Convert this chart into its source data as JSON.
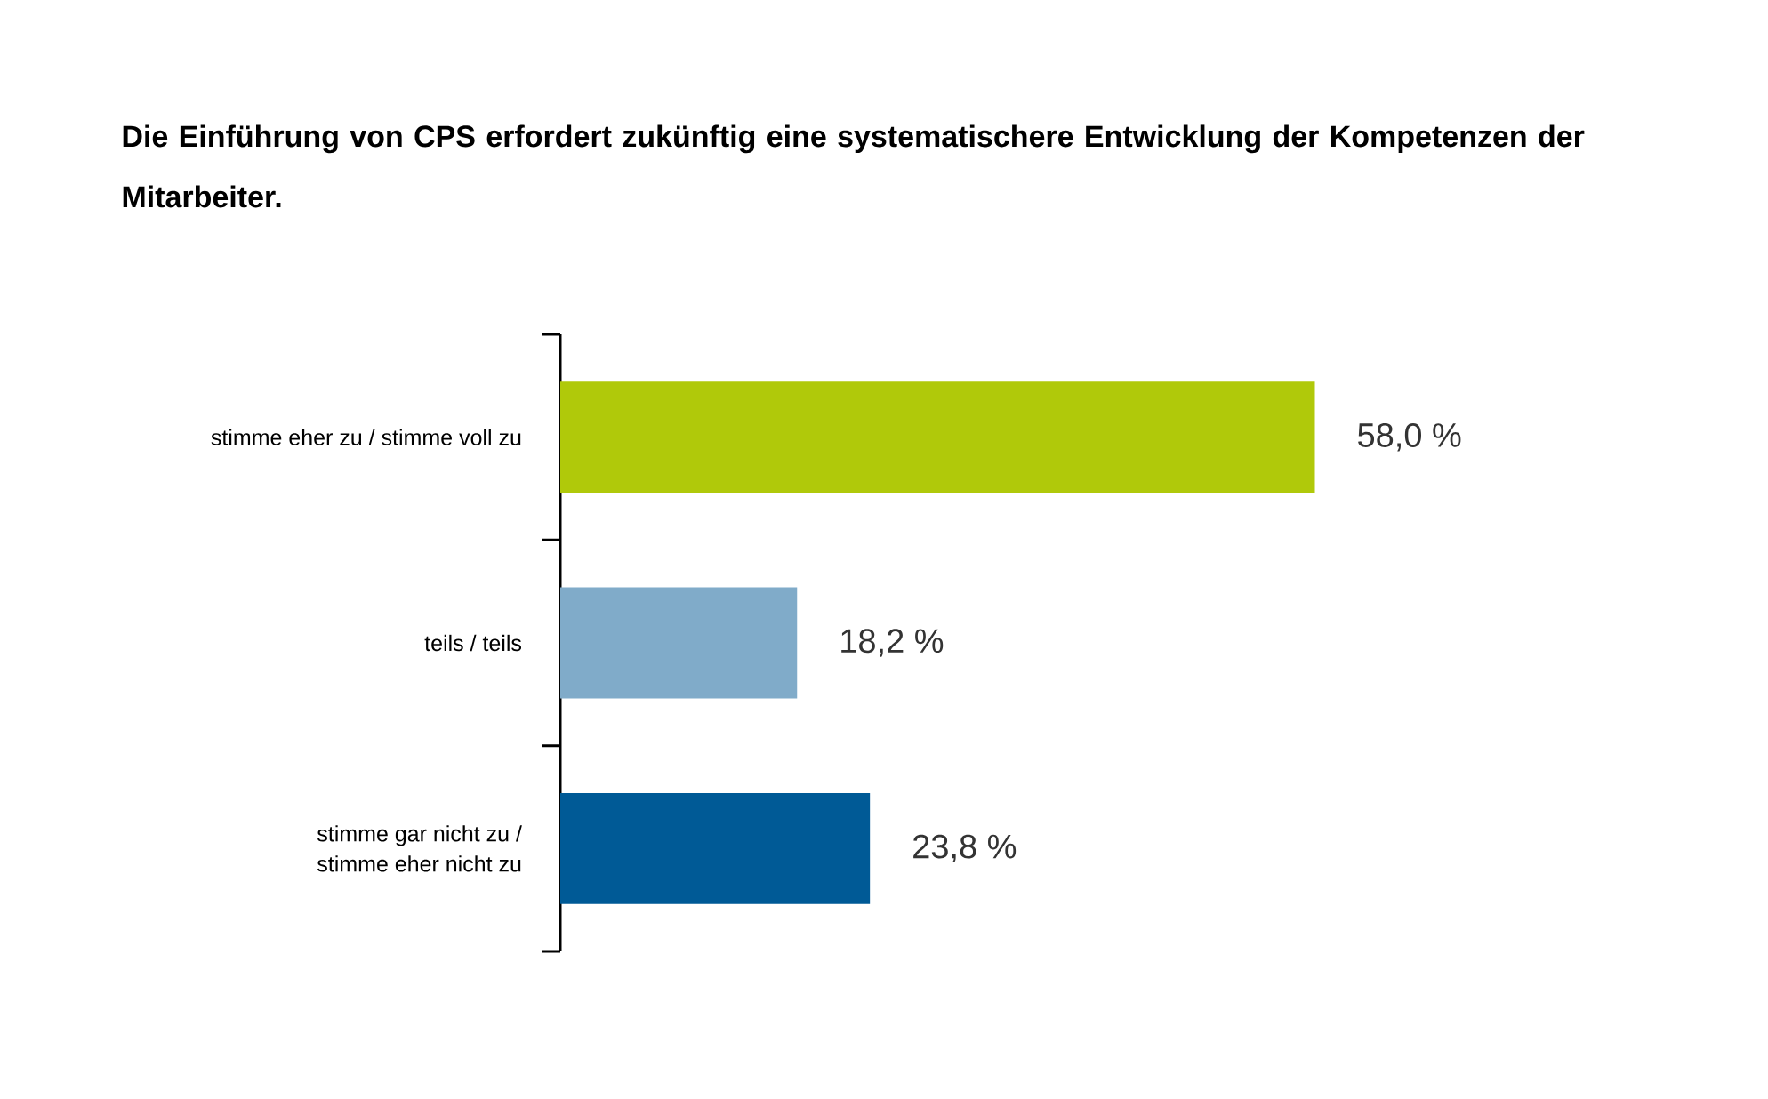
{
  "chart_data": {
    "type": "bar",
    "orientation": "horizontal",
    "tick_labels": "y",
    "title": "Die Einführung von CPS erfordert zukünftig eine systematischere Entwicklung der Kompetenzen der Mitarbeiter.",
    "categories": [
      "stimme eher zu / stimme voll zu",
      "teils / teils",
      "stimme gar nicht zu / stimme eher nicht zu"
    ],
    "values": [
      58.0,
      18.2,
      23.8
    ],
    "colors": [
      "#b0c90a",
      "#80abc9",
      "#005a96"
    ],
    "value_labels": [
      "58,0 %",
      "18,2 %",
      "23,8 %"
    ]
  }
}
